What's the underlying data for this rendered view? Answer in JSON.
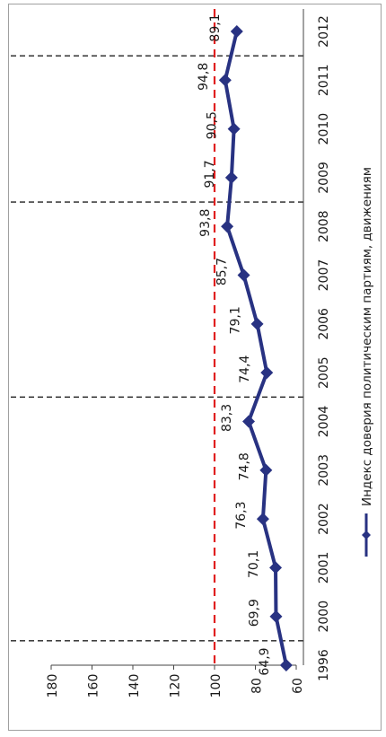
{
  "chart_data": {
    "type": "line",
    "orientation": "rotated-90-ccw",
    "categories": [
      "1996",
      "2000",
      "2001",
      "2002",
      "2003",
      "2004",
      "2005",
      "2006",
      "2007",
      "2008",
      "2009",
      "2010",
      "2011",
      "2012"
    ],
    "series": [
      {
        "name": "Индекс доверия политическим партиям, движениям",
        "values": [
          64.9,
          69.9,
          70.1,
          76.3,
          74.8,
          83.3,
          74.4,
          79.1,
          85.7,
          93.8,
          91.7,
          90.5,
          94.8,
          89.1
        ],
        "labels": [
          "64,9",
          "69,9",
          "70,1",
          "76,3",
          "74,8",
          "83,3",
          "74,4",
          "79,1",
          "85,7",
          "93,8",
          "91,7",
          "90,5",
          "94,8",
          "89,1"
        ],
        "color": "#283282"
      }
    ],
    "value_axis": {
      "min": 60,
      "max": 180,
      "ticks": [
        "60",
        "80",
        "100",
        "120",
        "140",
        "160",
        "180"
      ]
    },
    "reference_line": {
      "value": 100,
      "color": "#e02020",
      "style": "dashed"
    },
    "vertical_markers_between": [
      [
        "1996",
        "2000"
      ],
      [
        "2004",
        "2005"
      ],
      [
        "2008",
        "2009"
      ],
      [
        "2011",
        "2012"
      ]
    ],
    "legend_position": "right",
    "grid": false
  }
}
